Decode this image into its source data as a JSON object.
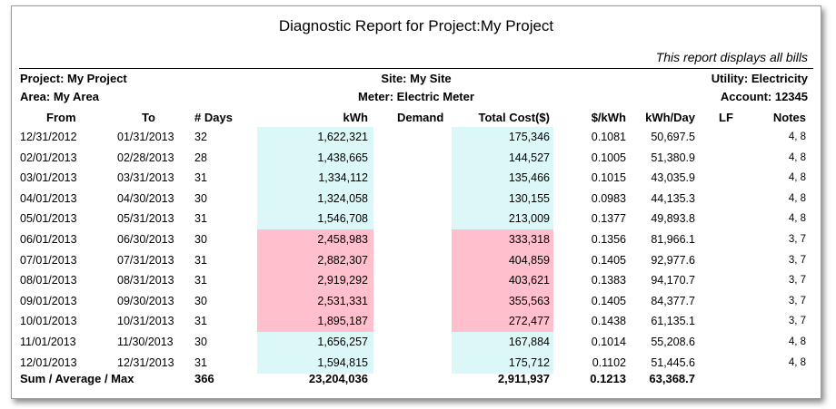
{
  "report": {
    "title": "Diagnostic Report for  Project:My Project",
    "subtitle": "This report displays all bills",
    "project": "Project: My Project",
    "area": "Area: My Area",
    "site": "Site: My Site",
    "meter": "Meter: Electric Meter",
    "utility": "Utility: Electricity",
    "account": "Account: 12345"
  },
  "columns": [
    "From",
    "To",
    "# Days",
    "kWh",
    "Demand",
    "Total Cost($)",
    "$/kWh",
    "kWh/Day",
    "LF",
    "Notes"
  ],
  "colors": {
    "normal": "#dcf7f7",
    "high": "#ffbfcc"
  },
  "rows": [
    {
      "from": "12/31/2012",
      "to": "01/31/2013",
      "days": "32",
      "kwh": "1,622,321",
      "demand": "",
      "cost": "175,346",
      "per_kwh": "0.1081",
      "kwh_day": "50,697.5",
      "lf": "",
      "notes": "4, 8",
      "status": "normal"
    },
    {
      "from": "02/01/2013",
      "to": "02/28/2013",
      "days": "28",
      "kwh": "1,438,665",
      "demand": "",
      "cost": "144,527",
      "per_kwh": "0.1005",
      "kwh_day": "51,380.9",
      "lf": "",
      "notes": "4, 8",
      "status": "normal"
    },
    {
      "from": "03/01/2013",
      "to": "03/31/2013",
      "days": "31",
      "kwh": "1,334,112",
      "demand": "",
      "cost": "135,466",
      "per_kwh": "0.1015",
      "kwh_day": "43,035.9",
      "lf": "",
      "notes": "4, 8",
      "status": "normal"
    },
    {
      "from": "04/01/2013",
      "to": "04/30/2013",
      "days": "30",
      "kwh": "1,324,058",
      "demand": "",
      "cost": "130,155",
      "per_kwh": "0.0983",
      "kwh_day": "44,135.3",
      "lf": "",
      "notes": "4, 8",
      "status": "normal"
    },
    {
      "from": "05/01/2013",
      "to": "05/31/2013",
      "days": "31",
      "kwh": "1,546,708",
      "demand": "",
      "cost": "213,009",
      "per_kwh": "0.1377",
      "kwh_day": "49,893.8",
      "lf": "",
      "notes": "4, 8",
      "status": "normal"
    },
    {
      "from": "06/01/2013",
      "to": "06/30/2013",
      "days": "30",
      "kwh": "2,458,983",
      "demand": "",
      "cost": "333,318",
      "per_kwh": "0.1356",
      "kwh_day": "81,966.1",
      "lf": "",
      "notes": "3, 7",
      "status": "high"
    },
    {
      "from": "07/01/2013",
      "to": "07/31/2013",
      "days": "31",
      "kwh": "2,882,307",
      "demand": "",
      "cost": "404,859",
      "per_kwh": "0.1405",
      "kwh_day": "92,977.6",
      "lf": "",
      "notes": "3, 7",
      "status": "high"
    },
    {
      "from": "08/01/2013",
      "to": "08/31/2013",
      "days": "31",
      "kwh": "2,919,292",
      "demand": "",
      "cost": "403,621",
      "per_kwh": "0.1383",
      "kwh_day": "94,170.7",
      "lf": "",
      "notes": "3, 7",
      "status": "high"
    },
    {
      "from": "09/01/2013",
      "to": "09/30/2013",
      "days": "30",
      "kwh": "2,531,331",
      "demand": "",
      "cost": "355,563",
      "per_kwh": "0.1405",
      "kwh_day": "84,377.7",
      "lf": "",
      "notes": "3, 7",
      "status": "high"
    },
    {
      "from": "10/01/2013",
      "to": "10/31/2013",
      "days": "31",
      "kwh": "1,895,187",
      "demand": "",
      "cost": "272,477",
      "per_kwh": "0.1438",
      "kwh_day": "61,135.1",
      "lf": "",
      "notes": "3, 7",
      "status": "high"
    },
    {
      "from": "11/01/2013",
      "to": "11/30/2013",
      "days": "30",
      "kwh": "1,656,257",
      "demand": "",
      "cost": "167,884",
      "per_kwh": "0.1014",
      "kwh_day": "55,208.6",
      "lf": "",
      "notes": "4, 8",
      "status": "normal"
    },
    {
      "from": "12/01/2013",
      "to": "12/31/2013",
      "days": "31",
      "kwh": "1,594,815",
      "demand": "",
      "cost": "175,712",
      "per_kwh": "0.1102",
      "kwh_day": "51,445.6",
      "lf": "",
      "notes": "4, 8",
      "status": "normal"
    }
  ],
  "summary": {
    "label": "Sum / Average / Max",
    "days": "366",
    "kwh": "23,204,036",
    "cost": "2,911,937",
    "per_kwh": "0.1213",
    "kwh_day": "63,368.7"
  }
}
